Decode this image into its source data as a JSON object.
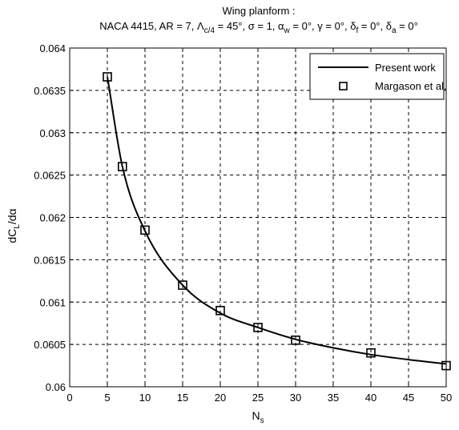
{
  "chart_data": {
    "type": "line",
    "title": "Wing planform :",
    "subtitle": "NACA 4415, AR = 7, Λ c/4 = 45°, σ = 1, α w = 0°, γ = 0°, δ f = 0°, δ a = 0°",
    "subtitle_parts": {
      "prefix": "NACA 4415, AR = 7, ",
      "lambda": "Λ",
      "lambda_sub": "c/4",
      "after_lambda": " = 45°, σ = 1, ",
      "alpha": "α",
      "alpha_sub": "w",
      "after_alpha": " = 0°, γ = 0°, ",
      "delta_f": "δ",
      "delta_f_sub": "f",
      "after_delta_f": " = 0°, ",
      "delta_a": "δ",
      "delta_a_sub": "a",
      "after_delta_a": " = 0°"
    },
    "xlabel": "N",
    "xlabel_sub": "s",
    "ylabel": "dC",
    "ylabel_sub": "L",
    "ylabel_suffix": "/dα",
    "xlim": [
      0,
      50
    ],
    "ylim": [
      0.06,
      0.064
    ],
    "xticks": [
      0,
      5,
      10,
      15,
      20,
      25,
      30,
      35,
      40,
      45,
      50
    ],
    "xtick_labels": [
      "0",
      "5",
      "10",
      "15",
      "20",
      "25",
      "30",
      "35",
      "40",
      "45",
      "50"
    ],
    "yticks": [
      0.06,
      0.0605,
      0.061,
      0.0615,
      0.062,
      0.0625,
      0.063,
      0.0635,
      0.064
    ],
    "ytick_labels": [
      "0.06",
      "0.0605",
      "0.061",
      "0.0615",
      "0.062",
      "0.0625",
      "0.063",
      "0.0635",
      "0.064"
    ],
    "grid": true,
    "legend_position": "top-right",
    "series": [
      {
        "name": "Present work",
        "style": "line",
        "color": "#000000",
        "x": [
          5,
          7,
          10,
          15,
          20,
          25,
          30,
          35,
          40,
          45,
          50
        ],
        "y": [
          0.06366,
          0.0626,
          0.06184,
          0.0612,
          0.06087,
          0.0607,
          0.06056,
          0.06046,
          0.06038,
          0.06032,
          0.06027
        ]
      },
      {
        "name": "Margason et al.",
        "style": "square-markers",
        "color": "#000000",
        "x": [
          5,
          7,
          10,
          15,
          20,
          25,
          30,
          40,
          50
        ],
        "y": [
          0.06366,
          0.0626,
          0.06185,
          0.0612,
          0.0609,
          0.0607,
          0.06055,
          0.0604,
          0.06025
        ]
      }
    ]
  }
}
